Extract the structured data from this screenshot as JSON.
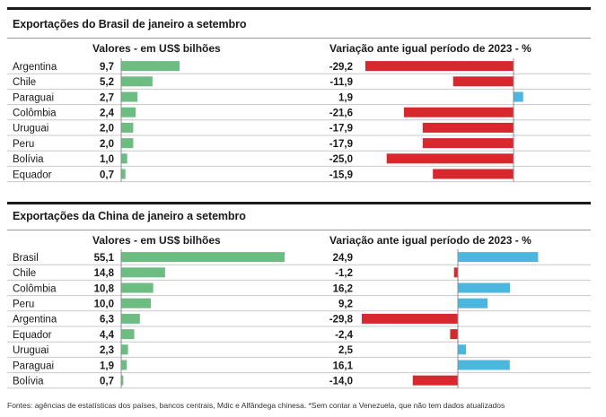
{
  "chart_data": [
    {
      "type": "bar",
      "title": "Exportações do Brasil de janeiro a setembro",
      "values_header": "Valores - em US$ bilhões",
      "change_header": "Variação ante igual período de 2023 - %",
      "categories": [
        "Argentina",
        "Chile",
        "Paraguai",
        "Colômbia",
        "Uruguai",
        "Peru",
        "Bolívia",
        "Equador"
      ],
      "values_labels": [
        "9,7",
        "5,2",
        "2,7",
        "2,4",
        "2,0",
        "2,0",
        "1,0",
        "0,7"
      ],
      "values": [
        9.7,
        5.2,
        2.7,
        2.4,
        2.0,
        2.0,
        1.0,
        0.7
      ],
      "change_labels": [
        "-29,2",
        "-11,9",
        "1,9",
        "-21,6",
        "-17,9",
        "-17,9",
        "-25,0",
        "-15,9"
      ],
      "change": [
        -29.2,
        -11.9,
        1.9,
        -21.6,
        -17.9,
        -17.9,
        -25.0,
        -15.9
      ]
    },
    {
      "type": "bar",
      "title": "Exportações da China de janeiro a setembro",
      "values_header": "Valores - em US$ bilhões",
      "change_header": "Variação ante igual período de 2023 - %",
      "categories": [
        "Brasil",
        "Chile",
        "Colômbia",
        "Peru",
        "Argentina",
        "Equador",
        "Uruguai",
        "Paraguai",
        "Bolívia"
      ],
      "values_labels": [
        "55,1",
        "14,8",
        "10,8",
        "10,0",
        "6,3",
        "4,4",
        "2,3",
        "1,9",
        "0,7"
      ],
      "values": [
        55.1,
        14.8,
        10.8,
        10.0,
        6.3,
        4.4,
        2.3,
        1.9,
        0.7
      ],
      "change_labels": [
        "24,9",
        "-1,2",
        "16,2",
        "9,2",
        "-29,8",
        "-2,4",
        "2,5",
        "16,1",
        "-14,0"
      ],
      "change": [
        24.9,
        -1.2,
        16.2,
        9.2,
        -29.8,
        -2.4,
        2.5,
        16.1,
        -14.0
      ]
    }
  ],
  "colors": {
    "value_bar": "#6dbd82",
    "negative_bar": "#d7282e",
    "positive_bar": "#4cb7de",
    "row_line": "#c8c8c8"
  },
  "source": "Fontes: agências de estatísticas dos países, bancos centrais, Mdic e Alfândega chinesa. *Sem contar a Venezuela, que não tem dados atualizados"
}
